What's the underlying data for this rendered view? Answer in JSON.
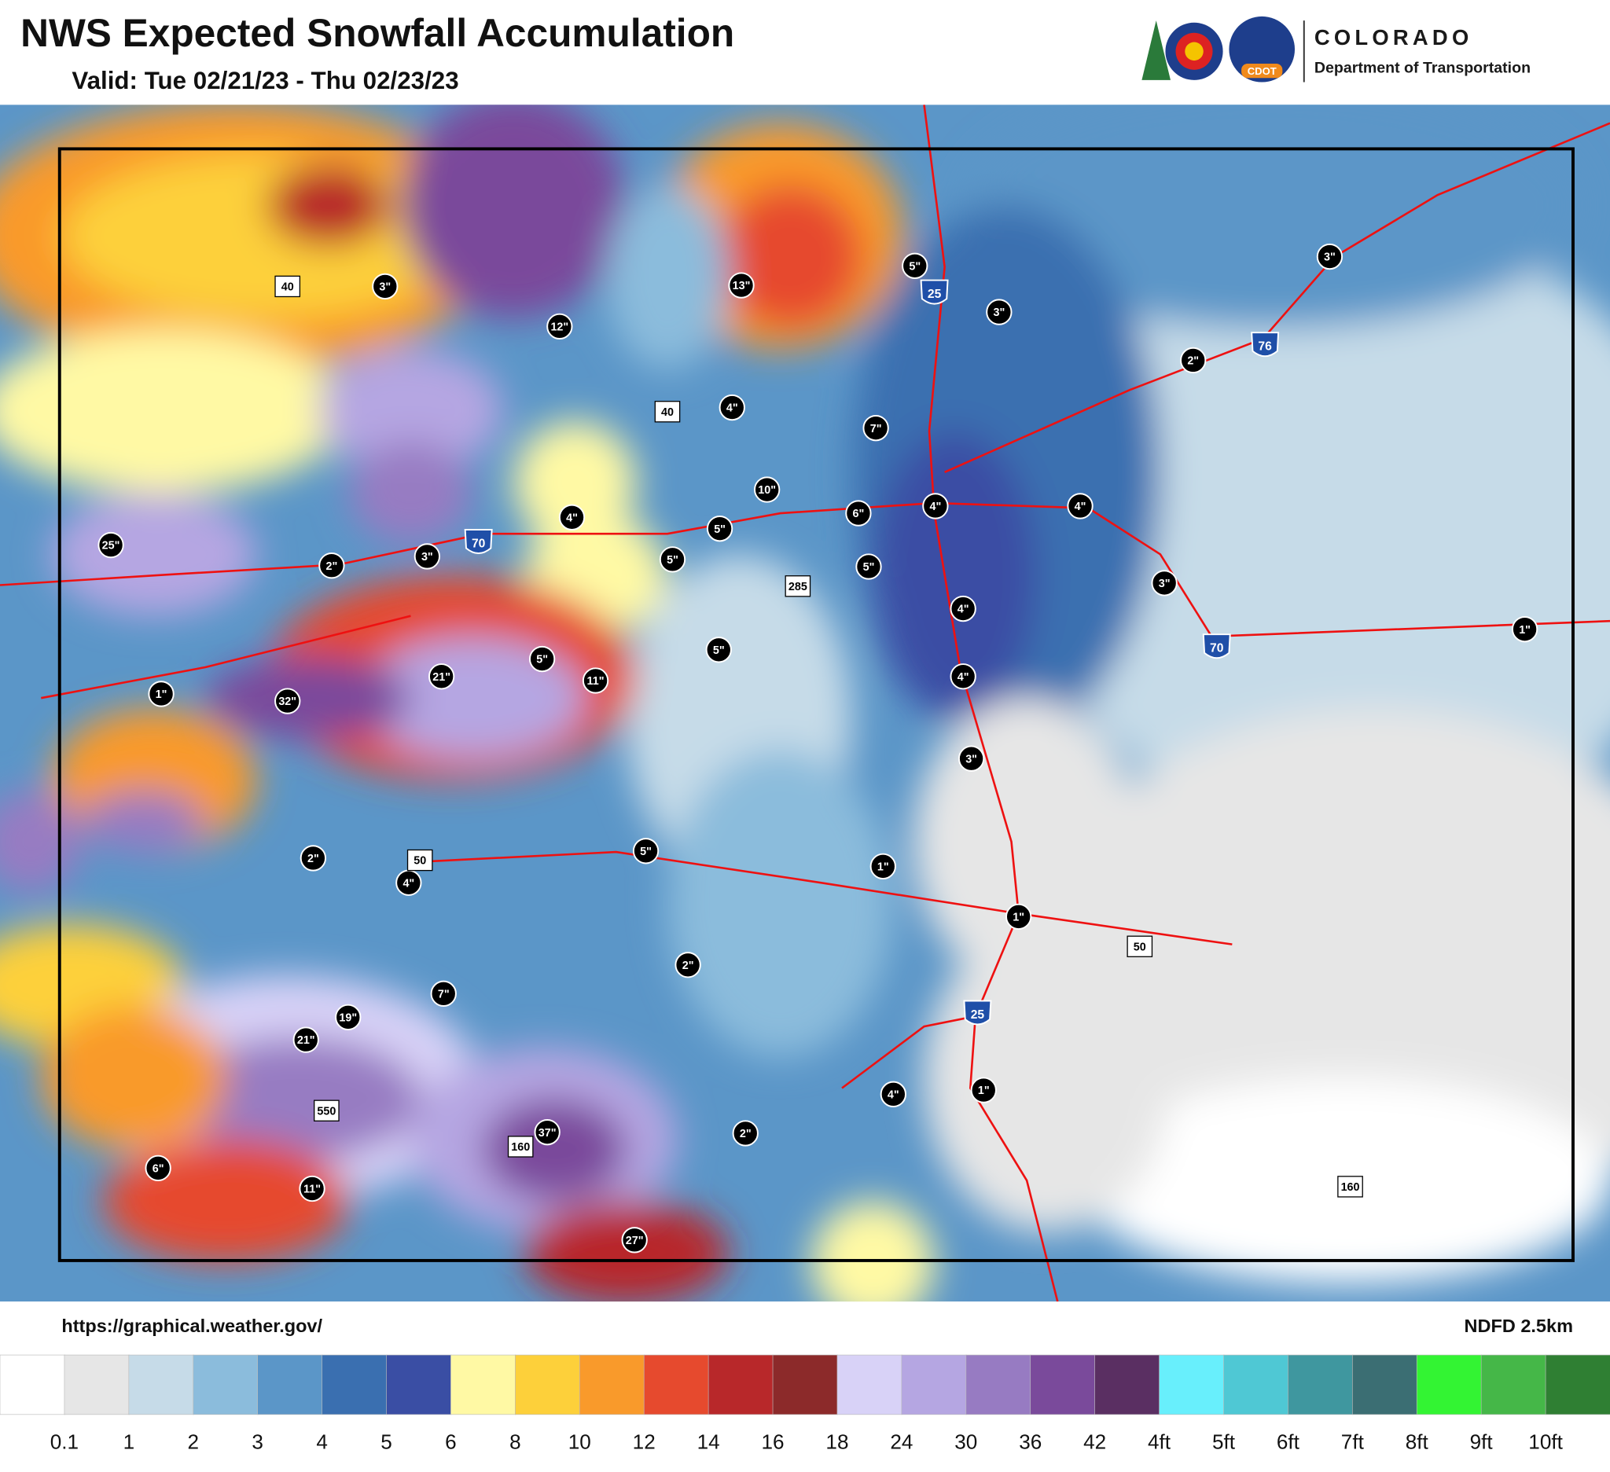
{
  "header": {
    "title": "NWS Expected Snowfall Accumulation",
    "valid": "Valid: Tue 02/21/23 - Thu 02/23/23",
    "logo_badge": "CDOT",
    "agency_name": "COLORADO",
    "agency_department": "Department of Transportation"
  },
  "map": {
    "snow_labels": [
      "3\"",
      "12\"",
      "13\"",
      "5\"",
      "3\"",
      "3\"",
      "2\"",
      "4\"",
      "7\"",
      "10\"",
      "6\"",
      "4\"",
      "4\"",
      "4\"",
      "5\"",
      "5\"",
      "5\"",
      "25\"",
      "2\"",
      "3\"",
      "3\"",
      "4\"",
      "5\"",
      "5\"",
      "1\"",
      "11\"",
      "21\"",
      "32\"",
      "1\"",
      "4\"",
      "3\"",
      "2\"",
      "5\"",
      "4\"",
      "1\"",
      "1\"",
      "2\"",
      "7\"",
      "19\"",
      "21\"",
      "4\"",
      "1\"",
      "2\"",
      "37\"",
      "6\"",
      "11\"",
      "27\""
    ],
    "highway_shields": [
      "40",
      "25",
      "76",
      "40",
      "70",
      "285",
      "70",
      "50",
      "50",
      "25",
      "550",
      "160",
      "160"
    ]
  },
  "footer": {
    "source_url": "https://graphical.weather.gov/",
    "model": "NDFD 2.5km"
  },
  "legend": {
    "colors": [
      "#ffffff",
      "#e6e6e6",
      "#c6dbe8",
      "#8bbcdc",
      "#5b96c8",
      "#3a6fb0",
      "#3a4ea4",
      "#fff9a4",
      "#fdd03a",
      "#f99a2b",
      "#e64a2e",
      "#b8282a",
      "#8c2a2a",
      "#d8d2f7",
      "#b5a6e2",
      "#977bc2",
      "#7a4a9b",
      "#5a2f62",
      "#68effc",
      "#4fc8d4",
      "#3f979f",
      "#3b6e73",
      "#33f433",
      "#45b748",
      "#2f7f33"
    ],
    "labels": [
      0.1,
      1,
      2,
      3,
      4,
      5,
      6,
      8,
      10,
      12,
      14,
      16,
      18,
      24,
      30,
      36,
      42,
      "4ft",
      "5ft",
      "6ft",
      "7ft",
      "8ft",
      "9ft",
      "10ft"
    ]
  }
}
